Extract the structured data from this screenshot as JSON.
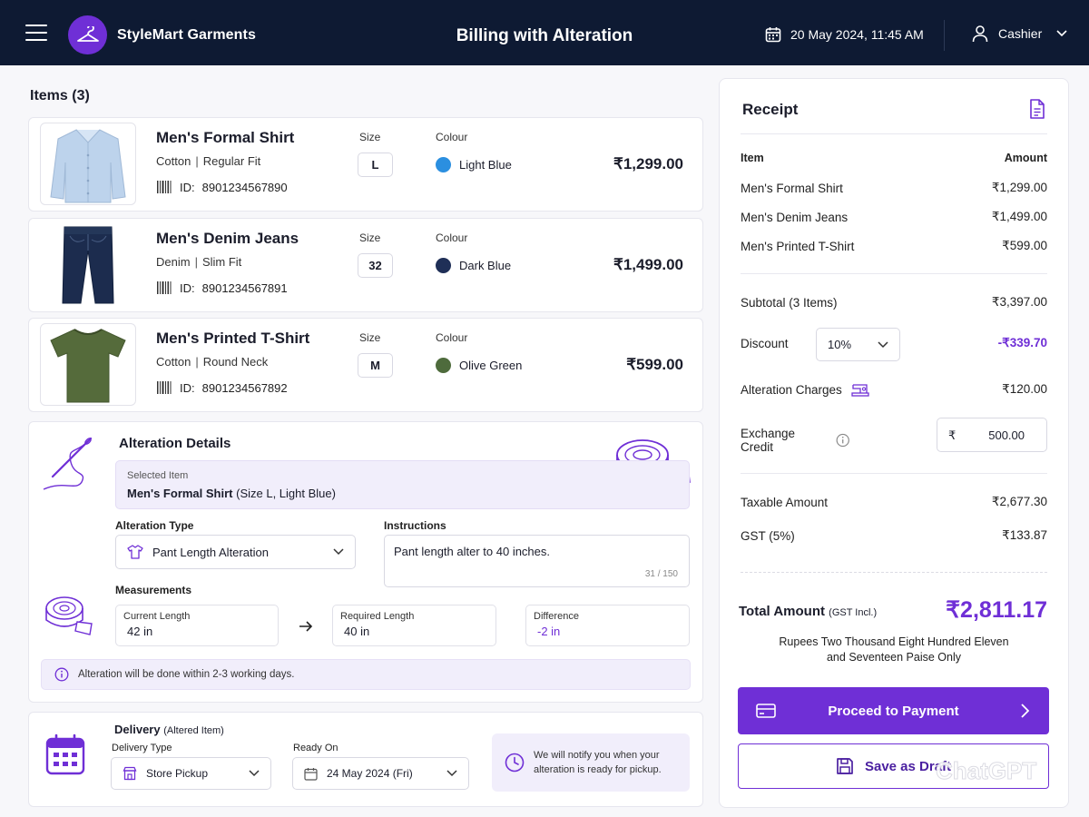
{
  "header": {
    "brand": "StyleMart Garments",
    "title": "Billing with Alteration",
    "datetime": "20 May 2024, 11:45 AM",
    "user_role": "Cashier"
  },
  "items_title": "Items (3)",
  "labels": {
    "size": "Size",
    "colour": "Colour",
    "id_prefix": "ID:"
  },
  "items": [
    {
      "name": "Men's Formal Shirt",
      "material": "Cotton",
      "fit": "Regular Fit",
      "id": "8901234567890",
      "size": "L",
      "colour": "Light Blue",
      "colour_hex": "#2b8fe0",
      "price": "₹1,299.00",
      "icon": "shirt-icon"
    },
    {
      "name": "Men's Denim Jeans",
      "material": "Denim",
      "fit": "Slim Fit",
      "id": "8901234567891",
      "size": "32",
      "colour": "Dark Blue",
      "colour_hex": "#1f2f57",
      "price": "₹1,499.00",
      "icon": "jeans-icon"
    },
    {
      "name": "Men's Printed T-Shirt",
      "material": "Cotton",
      "fit": "Round Neck",
      "id": "8901234567892",
      "size": "M",
      "colour": "Olive Green",
      "colour_hex": "#4e6b3c",
      "price": "₹599.00",
      "icon": "tshirt-icon"
    }
  ],
  "alteration": {
    "title": "Alteration Details",
    "selected_label": "Selected Item",
    "selected_item": "Men's Formal Shirt",
    "selected_detail": "(Size L, Light Blue)",
    "type_label": "Alteration Type",
    "type_value": "Pant Length Alteration",
    "instructions_label": "Instructions",
    "instructions_value": "Pant length alter to 40 inches.",
    "char_count": "31 / 150",
    "measurements_label": "Measurements",
    "current_label": "Current Length",
    "current_value": "42 in",
    "required_label": "Required Length",
    "required_value": "40 in",
    "difference_label": "Difference",
    "difference_value": "-2 in",
    "note": "Alteration will be done within 2-3 working days."
  },
  "delivery": {
    "title": "Delivery",
    "title_sub": "(Altered Item)",
    "type_label": "Delivery Type",
    "type_value": "Store Pickup",
    "ready_label": "Ready On",
    "ready_value": "24 May 2024 (Fri)",
    "notify_line1": "We will notify you when your",
    "notify_line2": "alteration is ready for pickup."
  },
  "receipt": {
    "title": "Receipt",
    "col_item": "Item",
    "col_amount": "Amount",
    "lines": [
      {
        "item": "Men's Formal Shirt",
        "amount": "₹1,299.00"
      },
      {
        "item": "Men's Denim Jeans",
        "amount": "₹1,499.00"
      },
      {
        "item": "Men's Printed T-Shirt",
        "amount": "₹599.00"
      }
    ],
    "subtotal_label": "Subtotal (3 Items)",
    "subtotal_value": "₹3,397.00",
    "discount_label": "Discount",
    "discount_select": "10%",
    "discount_value": "-₹339.70",
    "alteration_label": "Alteration Charges",
    "alteration_value": "₹120.00",
    "exchange_label": "Exchange Credit",
    "exchange_currency": "₹",
    "exchange_value": "500.00",
    "taxable_label": "Taxable Amount",
    "taxable_value": "₹2,677.30",
    "gst_label": "GST (5%)",
    "gst_value": "₹133.87",
    "total_label": "Total Amount",
    "total_sub": "(GST Incl.)",
    "total_value": "₹2,811.17",
    "words_line1": "Rupees Two Thousand Eight Hundred Eleven",
    "words_line2": "and Seventeen Paise Only",
    "pay_label": "Proceed to Payment",
    "draft_label": "Save as Draft"
  },
  "watermark": "ChatGPT",
  "colors": {
    "header_bg": "#0e1a33",
    "accent": "#6f2fd6",
    "accent_light": "#f1eefb"
  }
}
